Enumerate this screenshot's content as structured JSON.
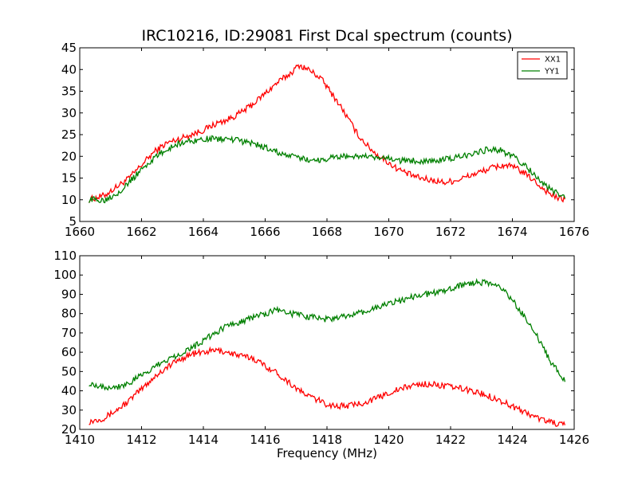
{
  "title": "IRC10216, ID:29081 First Dcal spectrum (counts)",
  "xlabel": "Frequency (MHz)",
  "chart_data": [
    {
      "type": "line",
      "xlim": [
        1660,
        1676
      ],
      "ylim": [
        5,
        45
      ],
      "xticks": [
        1660,
        1662,
        1664,
        1666,
        1668,
        1670,
        1672,
        1674,
        1676
      ],
      "yticks": [
        5,
        10,
        15,
        20,
        25,
        30,
        35,
        40,
        45
      ],
      "legend": "top-right",
      "grid": false,
      "series": [
        {
          "name": "XX1",
          "color": "#ff0000",
          "x": [
            1660.3,
            1660.8,
            1661.2,
            1661.6,
            1662.0,
            1662.4,
            1662.8,
            1663.2,
            1663.6,
            1664.0,
            1664.4,
            1664.8,
            1665.2,
            1665.6,
            1666.0,
            1666.4,
            1666.8,
            1667.1,
            1667.4,
            1667.8,
            1668.1,
            1668.4,
            1668.7,
            1669.0,
            1669.3,
            1669.6,
            1669.9,
            1670.2,
            1670.6,
            1671.0,
            1671.4,
            1671.8,
            1672.2,
            1672.6,
            1673.0,
            1673.4,
            1673.8,
            1674.2,
            1674.6,
            1675.0,
            1675.4,
            1675.7
          ],
          "y": [
            10,
            11,
            13,
            15,
            18,
            21,
            23,
            24,
            25,
            26,
            27.5,
            28.5,
            30,
            32,
            34.5,
            37,
            39,
            41,
            40,
            38,
            35,
            32,
            28.5,
            25,
            22.5,
            20.5,
            19,
            17.5,
            16,
            15,
            14.5,
            14,
            14.5,
            15.5,
            16.5,
            17.5,
            18,
            17,
            15,
            12.5,
            10.5,
            10
          ]
        },
        {
          "name": "YY1",
          "color": "#008000",
          "x": [
            1660.3,
            1660.8,
            1661.2,
            1661.6,
            1662.0,
            1662.4,
            1662.8,
            1663.2,
            1663.6,
            1664.0,
            1664.4,
            1664.8,
            1665.2,
            1665.6,
            1666.0,
            1666.4,
            1666.8,
            1667.2,
            1667.6,
            1668.0,
            1668.4,
            1668.8,
            1669.2,
            1669.6,
            1670.0,
            1670.4,
            1670.8,
            1671.2,
            1671.6,
            1672.0,
            1672.4,
            1672.8,
            1673.2,
            1673.6,
            1674.0,
            1674.4,
            1674.8,
            1675.2,
            1675.7
          ],
          "y": [
            10,
            10,
            11.5,
            14,
            17,
            19.5,
            21.5,
            23,
            23.5,
            24,
            24,
            24,
            23.5,
            23,
            22,
            21,
            20,
            19.5,
            19,
            19.5,
            20,
            20,
            20,
            19.5,
            19.5,
            19,
            19,
            19,
            19,
            19.5,
            20,
            21,
            21.5,
            21.5,
            20,
            18,
            15,
            12.5,
            10.5
          ]
        }
      ]
    },
    {
      "type": "line",
      "xlim": [
        1410,
        1426
      ],
      "ylim": [
        20,
        110
      ],
      "xticks": [
        1410,
        1412,
        1414,
        1416,
        1418,
        1420,
        1422,
        1424,
        1426
      ],
      "yticks": [
        20,
        30,
        40,
        50,
        60,
        70,
        80,
        90,
        100,
        110
      ],
      "grid": false,
      "series": [
        {
          "name": "XX1",
          "color": "#ff0000",
          "x": [
            1410.3,
            1410.8,
            1411.2,
            1411.6,
            1412.0,
            1412.4,
            1412.8,
            1413.2,
            1413.6,
            1414.0,
            1414.4,
            1414.8,
            1415.2,
            1415.6,
            1416.0,
            1416.4,
            1416.8,
            1417.2,
            1417.6,
            1418.0,
            1418.4,
            1418.8,
            1419.2,
            1419.6,
            1420.0,
            1420.4,
            1420.8,
            1421.2,
            1421.6,
            1422.0,
            1422.4,
            1422.8,
            1423.2,
            1423.6,
            1424.0,
            1424.4,
            1424.8,
            1425.2,
            1425.7
          ],
          "y": [
            24,
            26,
            30,
            35,
            41,
            47,
            52,
            56,
            59,
            60,
            61,
            60,
            58,
            57,
            53,
            49,
            44,
            39,
            36,
            33,
            32,
            32.5,
            34,
            36,
            39,
            41,
            43,
            43.5,
            43,
            42,
            41,
            39.5,
            37.5,
            35,
            32,
            29,
            26,
            24,
            22
          ]
        },
        {
          "name": "YY1",
          "color": "#008000",
          "x": [
            1410.3,
            1410.8,
            1411.2,
            1411.6,
            1412.0,
            1412.4,
            1412.8,
            1413.2,
            1413.6,
            1414.0,
            1414.4,
            1414.8,
            1415.2,
            1415.6,
            1416.0,
            1416.4,
            1416.8,
            1417.2,
            1417.6,
            1418.0,
            1418.4,
            1418.8,
            1419.2,
            1419.6,
            1420.0,
            1420.4,
            1420.8,
            1421.2,
            1421.6,
            1422.0,
            1422.4,
            1422.8,
            1423.2,
            1423.6,
            1424.0,
            1424.4,
            1424.8,
            1425.2,
            1425.7
          ],
          "y": [
            44,
            42,
            42,
            44,
            48,
            52,
            56,
            59,
            62,
            66,
            70,
            74,
            76,
            78,
            80,
            82,
            80,
            79,
            78,
            77,
            78,
            79,
            81,
            83,
            85,
            87,
            89,
            90,
            91,
            93,
            95,
            96,
            96,
            94,
            87,
            78,
            68,
            56,
            45
          ]
        }
      ]
    }
  ]
}
